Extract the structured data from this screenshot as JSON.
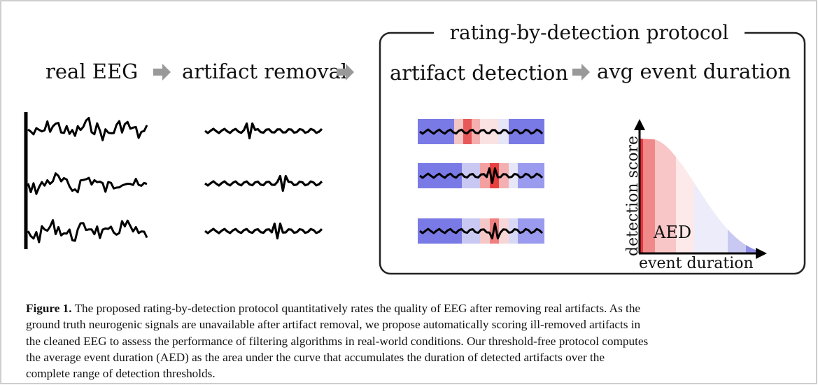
{
  "figure": {
    "protocol_title": "rating-by-detection protocol",
    "steps": [
      "real EEG",
      "artifact removal",
      "artifact detection",
      "avg event duration"
    ],
    "plot": {
      "y_label": "detection score",
      "x_label": "event duration",
      "area_label": "AED"
    },
    "caption": {
      "label": "Figure 1.",
      "lines": [
        "The proposed rating-by-detection protocol quantitatively rates the quality of EEG after removing real artifacts. As the",
        "ground truth neurogenic signals are unavailable after artifact removal, we propose automatically scoring ill-removed artifacts in",
        "the cleaned EEG to assess the performance of filtering algorithms in real-world conditions. Our threshold-free protocol computes",
        "the average event duration (AED) as the area under the curve that accumulates the duration of detected artifacts over the",
        "complete range of detection thresholds."
      ]
    }
  }
}
